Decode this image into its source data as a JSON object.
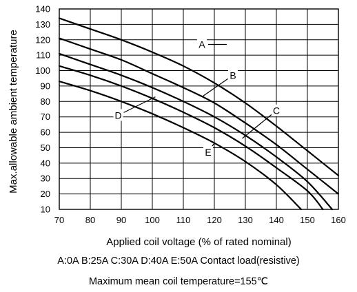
{
  "chart_data": {
    "type": "line",
    "xlabel": "Applied coil voltage (% of rated nominal)",
    "ylabel": "Max.allowable ambient temperature",
    "xlim": [
      70,
      160
    ],
    "ylim": [
      10,
      140
    ],
    "x_ticks": [
      70,
      80,
      90,
      100,
      110,
      120,
      130,
      140,
      150,
      160
    ],
    "y_ticks": [
      10,
      20,
      30,
      40,
      50,
      60,
      70,
      80,
      90,
      100,
      110,
      120,
      130,
      140
    ],
    "grid": true,
    "series": [
      {
        "name": "A",
        "points": [
          [
            70,
            134
          ],
          [
            80,
            127
          ],
          [
            90,
            120
          ],
          [
            100,
            112
          ],
          [
            110,
            103
          ],
          [
            120,
            92
          ],
          [
            130,
            79
          ],
          [
            140,
            64
          ],
          [
            150,
            48
          ],
          [
            160,
            32
          ]
        ]
      },
      {
        "name": "B",
        "points": [
          [
            70,
            121
          ],
          [
            80,
            114
          ],
          [
            90,
            107
          ],
          [
            100,
            98
          ],
          [
            110,
            89
          ],
          [
            120,
            79
          ],
          [
            130,
            66
          ],
          [
            140,
            52
          ],
          [
            150,
            36
          ],
          [
            160,
            20
          ]
        ]
      },
      {
        "name": "C",
        "points": [
          [
            70,
            111
          ],
          [
            80,
            104
          ],
          [
            90,
            97
          ],
          [
            100,
            89
          ],
          [
            110,
            80
          ],
          [
            120,
            70
          ],
          [
            130,
            58
          ],
          [
            140,
            44
          ],
          [
            150,
            28
          ],
          [
            158,
            10
          ]
        ]
      },
      {
        "name": "D",
        "points": [
          [
            70,
            103
          ],
          [
            80,
            97
          ],
          [
            90,
            90
          ],
          [
            100,
            82
          ],
          [
            110,
            73
          ],
          [
            120,
            63
          ],
          [
            130,
            51
          ],
          [
            140,
            37
          ],
          [
            150,
            22
          ],
          [
            155,
            10
          ]
        ]
      },
      {
        "name": "E",
        "points": [
          [
            70,
            93
          ],
          [
            80,
            87
          ],
          [
            90,
            80
          ],
          [
            100,
            72
          ],
          [
            110,
            63
          ],
          [
            120,
            53
          ],
          [
            130,
            41
          ],
          [
            140,
            26
          ],
          [
            148,
            10
          ]
        ]
      }
    ],
    "annotations": [
      {
        "text": "A",
        "at": [
          116,
          117
        ],
        "points_to": [
          124,
          117
        ]
      },
      {
        "text": "B",
        "at": [
          126,
          97
        ],
        "points_to": [
          116,
          83
        ]
      },
      {
        "text": "C",
        "at": [
          140,
          74
        ],
        "points_to": [
          129,
          56
        ]
      },
      {
        "text": "D",
        "at": [
          89,
          71
        ],
        "points_to": [
          101,
          83
        ]
      },
      {
        "text": "E",
        "at": [
          118,
          47
        ],
        "points_to": [
          120,
          53
        ]
      }
    ]
  },
  "captions": {
    "legend": "A:0A B:25A C:30A D:40A E:50A Contact load(resistive)",
    "note": "Maximum mean coil temperature=155℃"
  }
}
